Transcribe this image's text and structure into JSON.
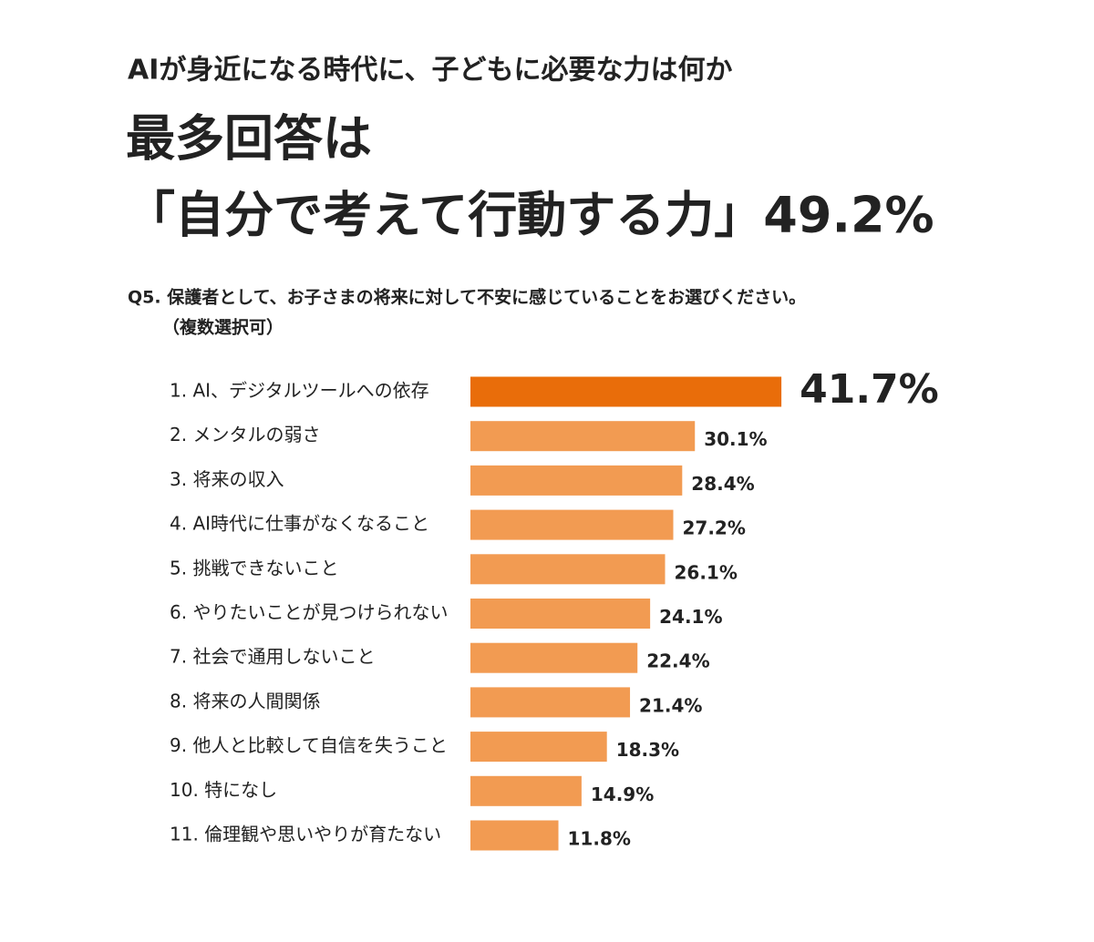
{
  "chart_data": {
    "type": "bar",
    "orientation": "horizontal",
    "subtitle": "AIが身近になる時代に、子どもに必要な力は何か",
    "headline": [
      "最多回答は",
      "「自分で考えて行動する力」49.2%"
    ],
    "title": [
      "Q5. 保護者として、お子さまの将来に対して不安に感じていることをお選びください。",
      "（複数選択可）"
    ],
    "categories": [
      "1. AI、デジタルツールへの依存",
      "2. メンタルの弱さ",
      "3. 将来の収入",
      "4. AI時代に仕事がなくなること",
      "5. 挑戦できないこと",
      "6. やりたいことが見つけられない",
      "7. 社会で通用しないこと",
      "8. 将来の人間関係",
      "9. 他人と比較して自信を失うこと",
      "10. 特になし",
      "11. 倫理観や思いやりが育たない"
    ],
    "values": [
      41.7,
      30.1,
      28.4,
      27.2,
      26.1,
      24.1,
      22.4,
      21.4,
      18.3,
      14.9,
      11.8
    ],
    "value_labels": [
      "41.7%",
      "30.1%",
      "28.4%",
      "27.2%",
      "26.1%",
      "24.1%",
      "22.4%",
      "21.4%",
      "18.3%",
      "14.9%",
      "11.8%"
    ],
    "colors": [
      "#e96d0a",
      "#f29b52",
      "#f29b52",
      "#f29b52",
      "#f29b52",
      "#f29b52",
      "#f29b52",
      "#f29b52",
      "#f29b52",
      "#f29b52",
      "#f29b52"
    ],
    "title_color": "#e8720f"
  }
}
